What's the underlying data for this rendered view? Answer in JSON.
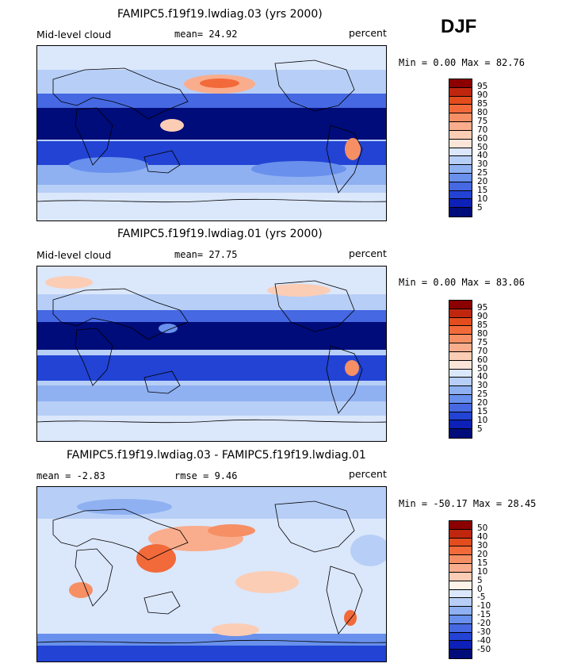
{
  "season": "DJF",
  "panels": [
    {
      "title": "FAMIPC5.f19f19.lwdiag.03 (yrs 2000)",
      "left_label": "Mid-level cloud",
      "mid_label": "mean=  24.92",
      "units": "percent",
      "minmax": "Min =   0.00 Max =  82.76",
      "colorbar_labels": [
        "95",
        "90",
        "85",
        "80",
        "75",
        "70",
        "60",
        "50",
        "40",
        "30",
        "25",
        "20",
        "15",
        "10",
        "5"
      ],
      "colorbar_colors": [
        "#8b0000",
        "#c0260e",
        "#e34c1d",
        "#f26a3a",
        "#f68f64",
        "#f9ad8d",
        "#fbcdb5",
        "#fbe5d9",
        "#dbe7fb",
        "#b7cff7",
        "#8fb0f1",
        "#6890ec",
        "#4668e2",
        "#2243d4",
        "#0d20b8",
        "#000c7a"
      ]
    },
    {
      "title": "FAMIPC5.f19f19.lwdiag.01 (yrs 2000)",
      "left_label": "Mid-level cloud",
      "mid_label": "mean=  27.75",
      "units": "percent",
      "minmax": "Min =   0.00 Max =  83.06",
      "colorbar_labels": [
        "95",
        "90",
        "85",
        "80",
        "75",
        "70",
        "60",
        "50",
        "40",
        "30",
        "25",
        "20",
        "15",
        "10",
        "5"
      ],
      "colorbar_colors": [
        "#8b0000",
        "#c0260e",
        "#e34c1d",
        "#f26a3a",
        "#f68f64",
        "#f9ad8d",
        "#fbcdb5",
        "#fbe5d9",
        "#dbe7fb",
        "#b7cff7",
        "#8fb0f1",
        "#6890ec",
        "#4668e2",
        "#2243d4",
        "#0d20b8",
        "#000c7a"
      ]
    },
    {
      "title": "FAMIPC5.f19f19.lwdiag.03 - FAMIPC5.f19f19.lwdiag.01",
      "left_label": "mean =   -2.83",
      "mid_label": "rmse =    9.46",
      "units": "percent",
      "minmax": "Min = -50.17 Max =  28.45",
      "colorbar_labels": [
        "50",
        "40",
        "30",
        "20",
        "15",
        "10",
        "5",
        "0",
        "-5",
        "-10",
        "-15",
        "-20",
        "-30",
        "-40",
        "-50"
      ],
      "colorbar_colors": [
        "#8b0000",
        "#c0260e",
        "#e34c1d",
        "#f26a3a",
        "#f68f64",
        "#f9ad8d",
        "#fbcdb5",
        "#fff2e8",
        "#dbe7fb",
        "#b7cff7",
        "#8fb0f1",
        "#6890ec",
        "#4668e2",
        "#2243d4",
        "#0d20b8",
        "#000c7a"
      ]
    }
  ]
}
